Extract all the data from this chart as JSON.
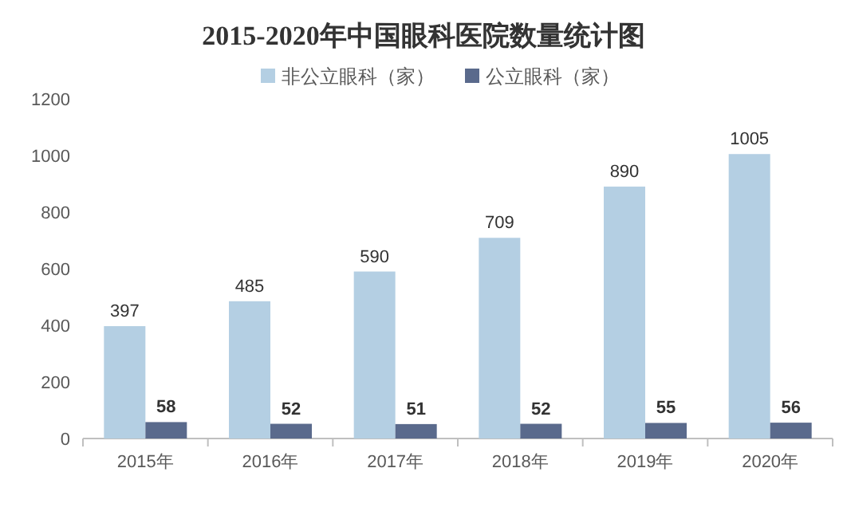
{
  "chart_data": {
    "type": "bar",
    "title": "2015-2020年中国眼科医院数量统计图",
    "categories": [
      "2015年",
      "2016年",
      "2017年",
      "2018年",
      "2019年",
      "2020年"
    ],
    "series": [
      {
        "name": "非公立眼科（家）",
        "color": "#b4cfe3",
        "values": [
          397,
          485,
          590,
          709,
          890,
          1005
        ]
      },
      {
        "name": "公立眼科（家）",
        "color": "#5a6a8c",
        "values": [
          58,
          52,
          51,
          52,
          55,
          56
        ]
      }
    ],
    "ylim": [
      0,
      1200
    ],
    "yticks": [
      0,
      200,
      400,
      600,
      800,
      1000,
      1200
    ],
    "grid": false,
    "legend": "top",
    "data_labels": true
  }
}
